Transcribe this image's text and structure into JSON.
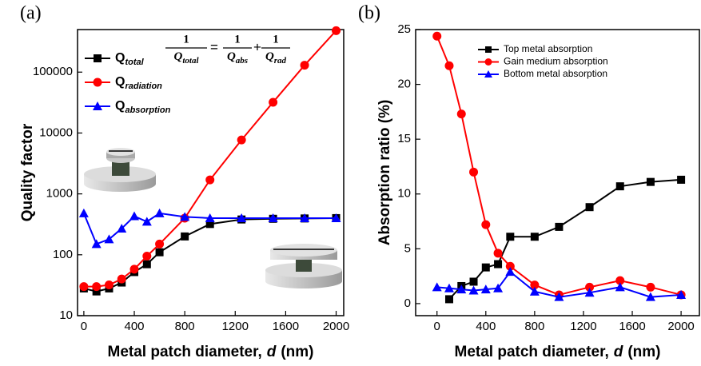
{
  "chart_data": [
    {
      "type": "line",
      "panel_label": "(a)",
      "y_label": "Quality factor",
      "x_label": [
        "Metal patch diameter,",
        "d",
        "(nm)"
      ],
      "x": [
        0,
        100,
        200,
        300,
        400,
        500,
        600,
        800,
        1000,
        1250,
        1500,
        1750,
        2000
      ],
      "xlim": [
        -50,
        2060
      ],
      "xticks": [
        0,
        400,
        800,
        1200,
        1600,
        2000
      ],
      "ylim": [
        10,
        500000
      ],
      "yticks": [
        10,
        100,
        1000,
        10000,
        100000
      ],
      "log_y": true,
      "series": [
        {
          "name": "Q",
          "name_subscript": "total",
          "color": "#000000",
          "marker": "square",
          "values": [
            28,
            25,
            28,
            35,
            52,
            70,
            110,
            200,
            320,
            380,
            390,
            395,
            400
          ]
        },
        {
          "name": "Q",
          "name_subscript": "radiation",
          "color": "#ff0000",
          "marker": "circle",
          "values": [
            30,
            30,
            32,
            40,
            58,
            95,
            150,
            400,
            1700,
            7700,
            32000,
            130000,
            480000
          ]
        },
        {
          "name": "Q",
          "name_subscript": "absorption",
          "color": "#0000ff",
          "marker": "triangle",
          "values": [
            480,
            150,
            180,
            270,
            430,
            350,
            480,
            420,
            400,
            400,
            400,
            400,
            400
          ]
        }
      ],
      "formula": {
        "terms": [
          {
            "numerator": "1",
            "denominator": "Q",
            "subscript": "total"
          },
          {
            "numerator": "1",
            "denominator": "Q",
            "subscript": "abs"
          },
          {
            "numerator": "1",
            "denominator": "Q",
            "subscript": "rad"
          }
        ],
        "operators": [
          "=",
          "+"
        ]
      }
    },
    {
      "type": "line",
      "panel_label": "(b)",
      "y_label": "Absorption ratio (%)",
      "x_label": [
        "Metal patch diameter,",
        "d",
        "(nm)"
      ],
      "x": [
        0,
        100,
        200,
        300,
        400,
        500,
        600,
        800,
        1000,
        1250,
        1500,
        1750,
        2000
      ],
      "xlim": [
        -175,
        2150
      ],
      "xticks": [
        0,
        400,
        800,
        1200,
        1600,
        2000
      ],
      "ylim": [
        -1.1,
        25
      ],
      "yticks": [
        0,
        5,
        10,
        15,
        20,
        25
      ],
      "log_y": false,
      "series": [
        {
          "name": "Top metal absorption",
          "color": "#000000",
          "marker": "square",
          "values": [
            null,
            0.4,
            1.6,
            2.0,
            3.3,
            3.6,
            6.1,
            6.1,
            7.0,
            8.8,
            10.7,
            11.1,
            11.3
          ]
        },
        {
          "name": "Gain medium absorption",
          "color": "#ff0000",
          "marker": "circle",
          "values": [
            24.4,
            21.7,
            17.3,
            12.0,
            7.2,
            4.6,
            3.4,
            1.7,
            0.8,
            1.5,
            2.1,
            1.5,
            0.8
          ]
        },
        {
          "name": "Bottom metal absorption",
          "color": "#0000ff",
          "marker": "triangle",
          "values": [
            1.5,
            1.4,
            1.3,
            1.2,
            1.3,
            1.4,
            2.9,
            1.1,
            0.6,
            1.0,
            1.5,
            0.6,
            0.8
          ]
        }
      ]
    }
  ]
}
